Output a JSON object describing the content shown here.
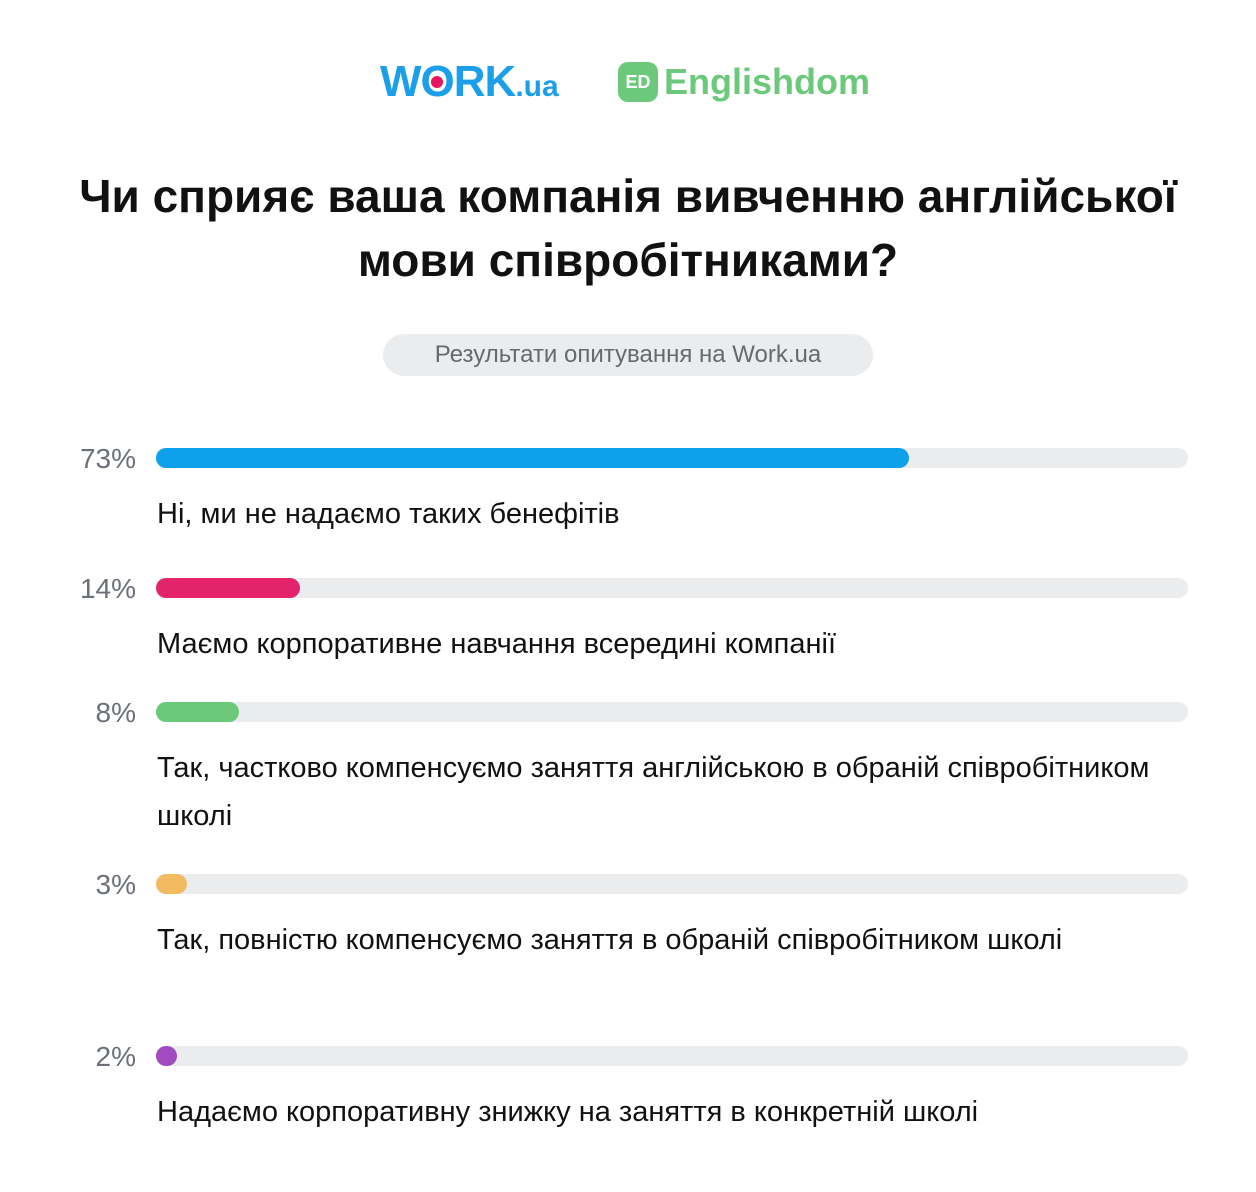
{
  "logos": {
    "work_main": "W",
    "work_rk": "RK",
    "work_ua": ".ua",
    "english_badge": "ED",
    "english_name": "Englishdom"
  },
  "title": "Чи сприяє ваша компанія вивченню англійської мови співробітниками?",
  "subtitle": "Результати опитування на Work.ua",
  "colors": {
    "work_blue": "#1a9fe8",
    "work_dot": "#e8175d",
    "englishdom_green": "#6cc87b",
    "track": "#ebecee"
  },
  "chart_data": {
    "type": "bar",
    "orientation": "horizontal",
    "xlim": [
      0,
      100
    ],
    "unit": "%",
    "categories": [
      "Ні, ми не надаємо таких бенефітів",
      "Маємо корпоративне навчання всередині компанії",
      "Так, частково компенсуємо заняття англійською в обраній співробітником школі",
      "Так, повністю компенсуємо заняття в обраній співробітником школі",
      "Надаємо корпоративну знижку на заняття в конкретній школі"
    ],
    "values": [
      73,
      14,
      8,
      3,
      2
    ],
    "value_labels": [
      "73%",
      "14%",
      "8%",
      "3%",
      "2%"
    ],
    "colors": [
      "#0ea0ea",
      "#e4246a",
      "#6cc87b",
      "#f2bb62",
      "#a04cc0"
    ]
  }
}
